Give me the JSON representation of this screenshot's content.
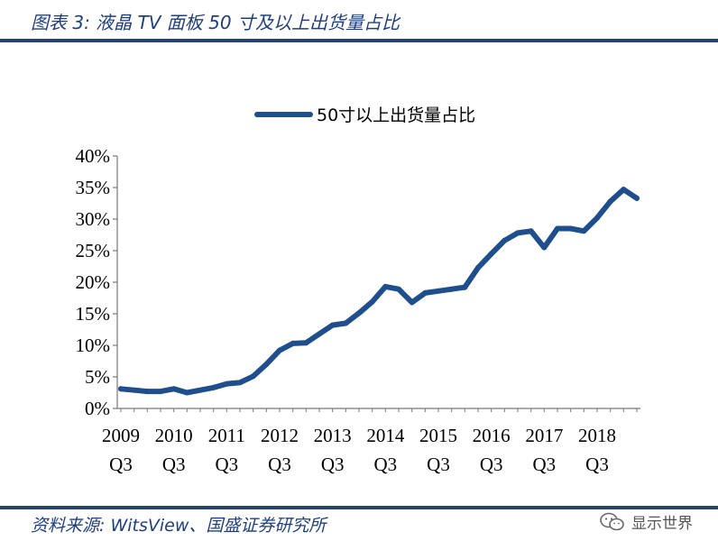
{
  "header": {
    "title": "图表 3: 液晶 TV 面板 50 寸及以上出货量占比"
  },
  "footer": {
    "source": "资料来源: WitsView、国盛证券研究所"
  },
  "watermark": {
    "icon": "wechat-icon",
    "text": "显示世界"
  },
  "colors": {
    "series": "#1f4e8c",
    "rule": "#24436f",
    "text_accent": "#1f3f7a"
  },
  "chart_data": {
    "type": "line",
    "legend": {
      "placement": "top-center"
    },
    "grid": false,
    "ylim": [
      0,
      40
    ],
    "ytick_labels": [
      "0%",
      "5%",
      "10%",
      "15%",
      "20%",
      "25%",
      "30%",
      "35%",
      "40%"
    ],
    "xtick_years": [
      "2009",
      "2010",
      "2011",
      "2012",
      "2013",
      "2014",
      "2015",
      "2016",
      "2017",
      "2018"
    ],
    "xtick_quarter": "Q3",
    "series": [
      {
        "name": "50寸以上出货量占比",
        "x": [
          "2009Q3",
          "2009Q4",
          "2010Q1",
          "2010Q2",
          "2010Q3",
          "2010Q4",
          "2011Q1",
          "2011Q2",
          "2011Q3",
          "2011Q4",
          "2012Q1",
          "2012Q2",
          "2012Q3",
          "2012Q4",
          "2013Q1",
          "2013Q2",
          "2013Q3",
          "2013Q4",
          "2014Q1",
          "2014Q2",
          "2014Q3",
          "2014Q4",
          "2015Q1",
          "2015Q2",
          "2015Q3",
          "2015Q4",
          "2016Q1",
          "2016Q2",
          "2016Q3",
          "2016Q4",
          "2017Q1",
          "2017Q2",
          "2017Q3",
          "2017Q4",
          "2018Q1",
          "2018Q2",
          "2018Q3",
          "2018Q4",
          "2019Q1",
          "2019Q2"
        ],
        "values": [
          3.1,
          2.9,
          2.7,
          2.7,
          3.1,
          2.5,
          2.9,
          3.3,
          3.9,
          4.1,
          5.1,
          7.0,
          9.2,
          10.3,
          10.4,
          11.8,
          13.2,
          13.5,
          15.1,
          16.9,
          19.3,
          18.9,
          16.8,
          18.3,
          18.6,
          18.9,
          19.2,
          22.3,
          24.5,
          26.6,
          27.8,
          28.1,
          25.5,
          28.5,
          28.5,
          28.1,
          30.2,
          32.8,
          34.7,
          33.3
        ]
      }
    ]
  }
}
